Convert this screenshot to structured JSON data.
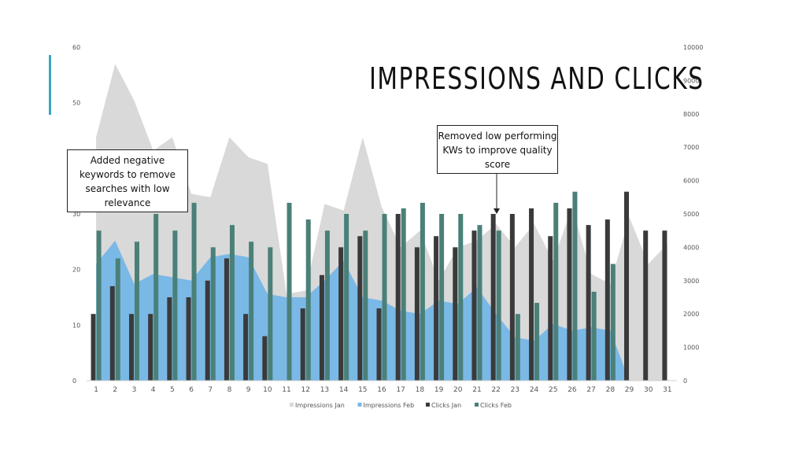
{
  "header": {
    "title": "IMPRESSIONS AND CLICKS"
  },
  "annotations": {
    "left": "Added negative keywords to remove searches with low relevance",
    "right": "Removed low performing KWs to improve quality score"
  },
  "colors": {
    "impressions_jan": "#d9d9d9",
    "impressions_feb": "#7ab8e6",
    "clicks_jan": "#3a3a3a",
    "clicks_feb": "#4a8078",
    "axis_text": "#555555",
    "accent": "#3aa6c0"
  },
  "chart_data": {
    "type": "bar",
    "title": "IMPRESSIONS AND CLICKS",
    "categories": [
      "1",
      "2",
      "3",
      "4",
      "5",
      "6",
      "7",
      "8",
      "9",
      "10",
      "11",
      "12",
      "13",
      "14",
      "15",
      "16",
      "17",
      "18",
      "19",
      "20",
      "21",
      "22",
      "23",
      "24",
      "25",
      "26",
      "27",
      "28",
      "29",
      "30",
      "31"
    ],
    "left_axis": {
      "min": 0,
      "max": 60,
      "ticks": [
        0,
        10,
        20,
        30,
        40,
        50,
        60
      ]
    },
    "right_axis": {
      "min": 0,
      "max": 10000,
      "ticks": [
        0,
        1000,
        2000,
        3000,
        4000,
        5000,
        6000,
        7000,
        8000,
        9000,
        10000
      ]
    },
    "grid": false,
    "legend_position": "bottom",
    "series": [
      {
        "name": "Impressions Jan",
        "type": "area",
        "axis": "right",
        "values": [
          7300,
          9500,
          8400,
          6900,
          7300,
          5600,
          5500,
          7300,
          6700,
          6500,
          2600,
          2700,
          5300,
          5100,
          7300,
          5200,
          4000,
          4500,
          3000,
          4000,
          4200,
          4700,
          4000,
          4700,
          3600,
          5200,
          3200,
          2900,
          4900,
          3500,
          4100
        ]
      },
      {
        "name": "Impressions Feb",
        "type": "area",
        "axis": "right",
        "values": [
          3500,
          4200,
          2900,
          3200,
          3100,
          3000,
          3700,
          3800,
          3700,
          2600,
          2500,
          2500,
          3000,
          3600,
          2500,
          2400,
          2100,
          2000,
          2400,
          2300,
          2800,
          2000,
          1300,
          1200,
          1700,
          1500,
          1600,
          1500,
          0,
          null,
          null
        ]
      },
      {
        "name": "Clicks Jan",
        "type": "bar",
        "axis": "left",
        "values": [
          12,
          17,
          12,
          12,
          15,
          15,
          18,
          22,
          12,
          8,
          0,
          13,
          19,
          24,
          26,
          13,
          30,
          24,
          26,
          24,
          27,
          30,
          30,
          31,
          26,
          31,
          28,
          29,
          34,
          27,
          27
        ]
      },
      {
        "name": "Clicks Feb",
        "type": "bar",
        "axis": "left",
        "values": [
          27,
          22,
          25,
          30,
          27,
          32,
          24,
          28,
          25,
          24,
          32,
          29,
          27,
          30,
          27,
          30,
          31,
          32,
          30,
          30,
          28,
          27,
          12,
          14,
          32,
          34,
          16,
          21,
          null,
          null,
          null
        ]
      }
    ]
  }
}
